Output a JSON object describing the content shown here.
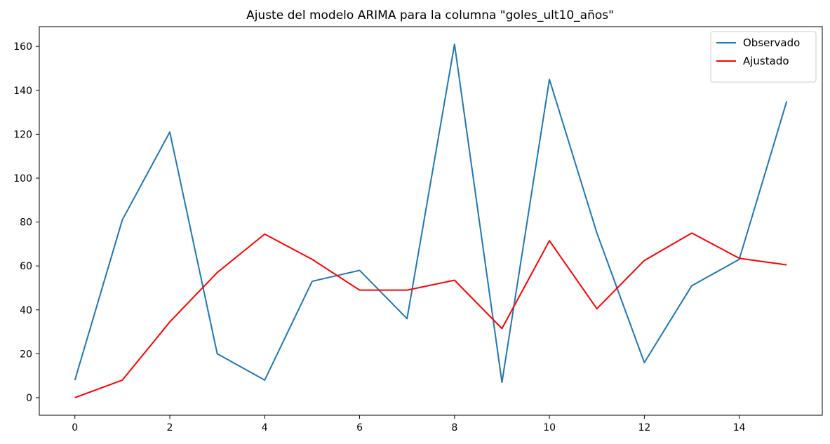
{
  "chart_data": {
    "type": "line",
    "title": "Ajuste del modelo ARIMA para la columna \"goles_ult10_años\"",
    "xlabel": "",
    "ylabel": "",
    "x": [
      0,
      1,
      2,
      3,
      4,
      5,
      6,
      7,
      8,
      9,
      10,
      11,
      12,
      13,
      14,
      15
    ],
    "xlim": [
      -0.75,
      15.75
    ],
    "ylim": [
      -8,
      169
    ],
    "xticks": [
      0,
      2,
      4,
      6,
      8,
      10,
      12,
      14
    ],
    "yticks": [
      0,
      20,
      40,
      60,
      80,
      100,
      120,
      140,
      160
    ],
    "grid": false,
    "legend_position": "top-right",
    "series": [
      {
        "name": "Observado",
        "color": "#1f77b4",
        "values": [
          8,
          81,
          121,
          20,
          8,
          53,
          58,
          36,
          161,
          7,
          145,
          75,
          16,
          51,
          63,
          135
        ]
      },
      {
        "name": "Ajustado",
        "color": "#ff0000",
        "values": [
          0,
          8,
          34.5,
          57,
          74.5,
          63,
          49,
          49,
          53.5,
          31.5,
          71.5,
          40.5,
          62.5,
          75,
          63.5,
          60.5
        ]
      }
    ]
  }
}
